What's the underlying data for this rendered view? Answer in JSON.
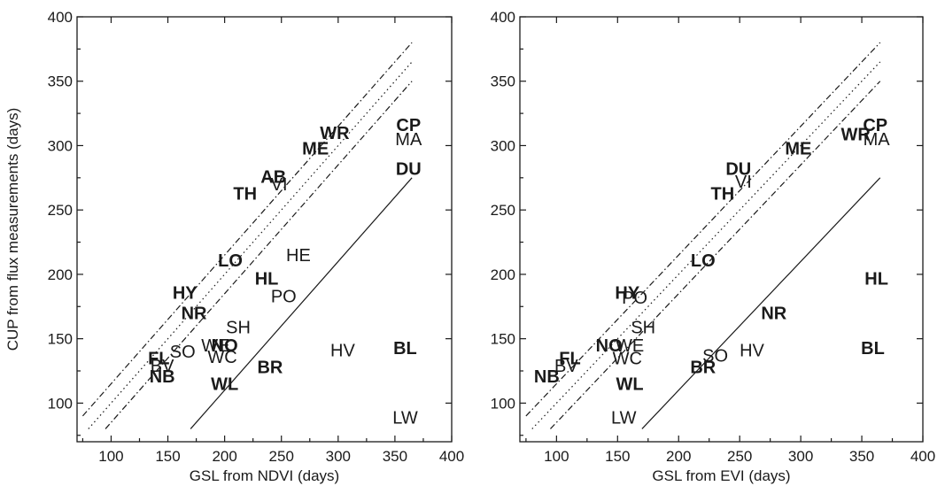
{
  "chart_data": [
    {
      "type": "scatter",
      "title": "",
      "xlabel": "GSL from NDVI (days)",
      "ylabel": "CUP from flux measurements (days)",
      "xlim": [
        70,
        400
      ],
      "ylim": [
        70,
        400
      ],
      "xticks": [
        "100",
        "150",
        "200",
        "250",
        "300",
        "350",
        "400"
      ],
      "yticks": [
        "100",
        "150",
        "200",
        "250",
        "300",
        "350",
        "400"
      ],
      "lines": [
        {
          "style": "dashdot",
          "x": [
            75,
            365
          ],
          "y": [
            90,
            380
          ]
        },
        {
          "style": "dotted",
          "x": [
            80,
            365
          ],
          "y": [
            80,
            365
          ]
        },
        {
          "style": "dashdot",
          "x": [
            95,
            365
          ],
          "y": [
            80,
            350
          ]
        },
        {
          "style": "solid",
          "x": [
            170,
            365
          ],
          "y": [
            80,
            275
          ]
        }
      ],
      "points": [
        {
          "label": "WR",
          "x": 297,
          "y": 310,
          "bold": true
        },
        {
          "label": "ME",
          "x": 280,
          "y": 298,
          "bold": true
        },
        {
          "label": "CP",
          "x": 362,
          "y": 316,
          "bold": true
        },
        {
          "label": "MA",
          "x": 362,
          "y": 305,
          "bold": false
        },
        {
          "label": "DU",
          "x": 362,
          "y": 282,
          "bold": true
        },
        {
          "label": "AB",
          "x": 243,
          "y": 276,
          "bold": true
        },
        {
          "label": "VI",
          "x": 248,
          "y": 270,
          "bold": false
        },
        {
          "label": "TH",
          "x": 218,
          "y": 263,
          "bold": true
        },
        {
          "label": "LO",
          "x": 205,
          "y": 211,
          "bold": true
        },
        {
          "label": "HE",
          "x": 265,
          "y": 215,
          "bold": false
        },
        {
          "label": "HL",
          "x": 237,
          "y": 197,
          "bold": true
        },
        {
          "label": "HY",
          "x": 165,
          "y": 186,
          "bold": true
        },
        {
          "label": "PO",
          "x": 252,
          "y": 183,
          "bold": false
        },
        {
          "label": "NR",
          "x": 173,
          "y": 170,
          "bold": true
        },
        {
          "label": "SH",
          "x": 212,
          "y": 159,
          "bold": false
        },
        {
          "label": "NO",
          "x": 200,
          "y": 145,
          "bold": true
        },
        {
          "label": "WE",
          "x": 192,
          "y": 145,
          "bold": false
        },
        {
          "label": "SO",
          "x": 163,
          "y": 140,
          "bold": false
        },
        {
          "label": "WC",
          "x": 198,
          "y": 136,
          "bold": false
        },
        {
          "label": "FL",
          "x": 142,
          "y": 135,
          "bold": true
        },
        {
          "label": "BV",
          "x": 145,
          "y": 129,
          "bold": false
        },
        {
          "label": "NB",
          "x": 145,
          "y": 121,
          "bold": true
        },
        {
          "label": "BR",
          "x": 240,
          "y": 128,
          "bold": true
        },
        {
          "label": "HV",
          "x": 304,
          "y": 141,
          "bold": false
        },
        {
          "label": "BL",
          "x": 359,
          "y": 143,
          "bold": true
        },
        {
          "label": "WL",
          "x": 200,
          "y": 115,
          "bold": true
        },
        {
          "label": "LW",
          "x": 359,
          "y": 89,
          "bold": false
        }
      ]
    },
    {
      "type": "scatter",
      "title": "",
      "xlabel": "GSL from EVI (days)",
      "ylabel": "",
      "xlim": [
        70,
        400
      ],
      "ylim": [
        70,
        400
      ],
      "xticks": [
        "100",
        "150",
        "200",
        "250",
        "300",
        "350",
        "400"
      ],
      "yticks": [
        "100",
        "150",
        "200",
        "250",
        "300",
        "350",
        "400"
      ],
      "lines": [
        {
          "style": "dashdot",
          "x": [
            75,
            365
          ],
          "y": [
            90,
            380
          ]
        },
        {
          "style": "dotted",
          "x": [
            80,
            365
          ],
          "y": [
            80,
            365
          ]
        },
        {
          "style": "dashdot",
          "x": [
            95,
            365
          ],
          "y": [
            80,
            350
          ]
        },
        {
          "style": "solid",
          "x": [
            170,
            365
          ],
          "y": [
            80,
            275
          ]
        }
      ],
      "points": [
        {
          "label": "CP",
          "x": 361,
          "y": 316,
          "bold": true
        },
        {
          "label": "MA",
          "x": 362,
          "y": 305,
          "bold": false
        },
        {
          "label": "WR",
          "x": 345,
          "y": 309,
          "bold": true
        },
        {
          "label": "ME",
          "x": 298,
          "y": 298,
          "bold": true
        },
        {
          "label": "DU",
          "x": 249,
          "y": 282,
          "bold": true
        },
        {
          "label": "VI",
          "x": 253,
          "y": 272,
          "bold": false
        },
        {
          "label": "TH",
          "x": 236,
          "y": 263,
          "bold": true
        },
        {
          "label": "LO",
          "x": 220,
          "y": 211,
          "bold": true
        },
        {
          "label": "HL",
          "x": 362,
          "y": 197,
          "bold": true
        },
        {
          "label": "HY",
          "x": 158,
          "y": 186,
          "bold": true
        },
        {
          "label": "PO",
          "x": 164,
          "y": 182,
          "bold": false
        },
        {
          "label": "NR",
          "x": 278,
          "y": 170,
          "bold": true
        },
        {
          "label": "SH",
          "x": 171,
          "y": 159,
          "bold": false
        },
        {
          "label": "NO",
          "x": 143,
          "y": 145,
          "bold": true
        },
        {
          "label": "WE",
          "x": 160,
          "y": 145,
          "bold": false
        },
        {
          "label": "FL",
          "x": 111,
          "y": 135,
          "bold": true
        },
        {
          "label": "BV",
          "x": 108,
          "y": 129,
          "bold": false
        },
        {
          "label": "NB",
          "x": 92,
          "y": 121,
          "bold": true
        },
        {
          "label": "WC",
          "x": 158,
          "y": 135,
          "bold": false
        },
        {
          "label": "SO",
          "x": 230,
          "y": 137,
          "bold": false
        },
        {
          "label": "BR",
          "x": 220,
          "y": 128,
          "bold": true
        },
        {
          "label": "HV",
          "x": 260,
          "y": 141,
          "bold": false
        },
        {
          "label": "BL",
          "x": 359,
          "y": 143,
          "bold": true
        },
        {
          "label": "WL",
          "x": 160,
          "y": 115,
          "bold": true
        },
        {
          "label": "LW",
          "x": 155,
          "y": 89,
          "bold": false
        }
      ]
    }
  ]
}
